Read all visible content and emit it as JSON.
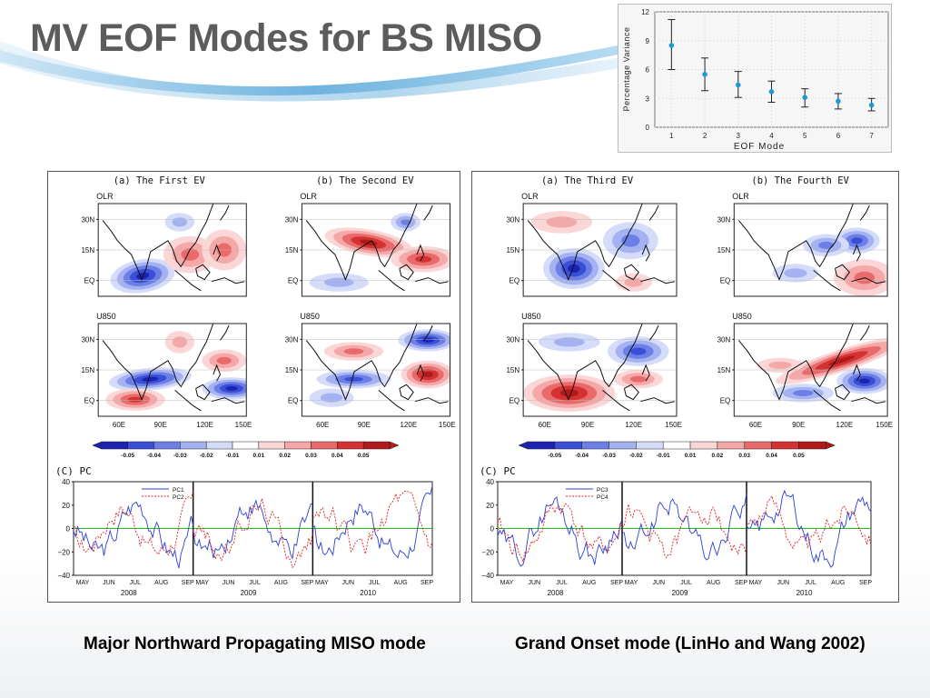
{
  "slide": {
    "title": "MV EOF Modes for BS MISO",
    "caption_left": "Major Northward Propagating MISO mode",
    "caption_right": "Grand Onset mode (LinHo and Wang 2002)"
  },
  "inset_chart": {
    "ylabel": "Percentage Variance",
    "xlabel": "EOF Mode",
    "yticks": [
      "0",
      "3",
      "6",
      "9",
      "12"
    ],
    "xticks": [
      "1",
      "2",
      "3",
      "4",
      "5",
      "6",
      "7"
    ]
  },
  "chart_data": {
    "type": "scatter",
    "x": [
      1,
      2,
      3,
      4,
      5,
      6,
      7
    ],
    "values": [
      8.5,
      5.5,
      4.4,
      3.7,
      3.1,
      2.7,
      2.3
    ],
    "error_low": [
      6.0,
      3.8,
      3.1,
      2.6,
      2.1,
      1.9,
      1.7
    ],
    "error_high": [
      11.2,
      7.2,
      5.8,
      4.8,
      4.0,
      3.5,
      3.0
    ],
    "xlabel": "EOF Mode",
    "ylabel": "Percentage Variance",
    "ylim": [
      0,
      12
    ],
    "xlim": [
      0.5,
      7.5
    ],
    "marker_color": "#1a9ad6",
    "grid": true
  },
  "left_panel": {
    "title_a": "(a) The First EV",
    "title_b": "(b) The Second EV",
    "var_top": "OLR",
    "var_bottom": "U850",
    "pc_title": "(C) PC",
    "legend_1": "PC1",
    "legend_2": "PC2"
  },
  "right_panel": {
    "title_a": "(a) The Third EV",
    "title_b": "(b) The Fourth EV",
    "var_top": "OLR",
    "var_bottom": "U850",
    "pc_title": "(C) PC",
    "legend_1": "PC3",
    "legend_2": "PC4"
  },
  "map_axes": {
    "lat_labels": [
      "30N",
      "15N",
      "EQ"
    ],
    "lon_labels": [
      "60E",
      "90E",
      "120E",
      "150E"
    ]
  },
  "colorbar": {
    "labels": [
      "-0.05",
      "-0.04",
      "-0.03",
      "-0.02",
      "-0.01",
      "0.01",
      "0.02",
      "0.03",
      "0.04",
      "0.05"
    ],
    "colors": [
      "#1a24b0",
      "#3a4fd6",
      "#6b7fe6",
      "#a4b2f2",
      "#d4dcfa",
      "#ffffff",
      "#fbd6d6",
      "#f4a8a8",
      "#e86a6a",
      "#d43232",
      "#b01a1a"
    ]
  },
  "pc_axes": {
    "yticks": [
      "40",
      "20",
      "0",
      "−20",
      "−40"
    ],
    "months": [
      "MAY",
      "JUN",
      "JUL",
      "AUG",
      "SEP"
    ],
    "years": [
      "2008",
      "2009",
      "2010"
    ]
  },
  "colors": {
    "pc_solid": "#2b3fd6",
    "pc_dashed": "#e02020",
    "zero_line": "#22bb22"
  }
}
